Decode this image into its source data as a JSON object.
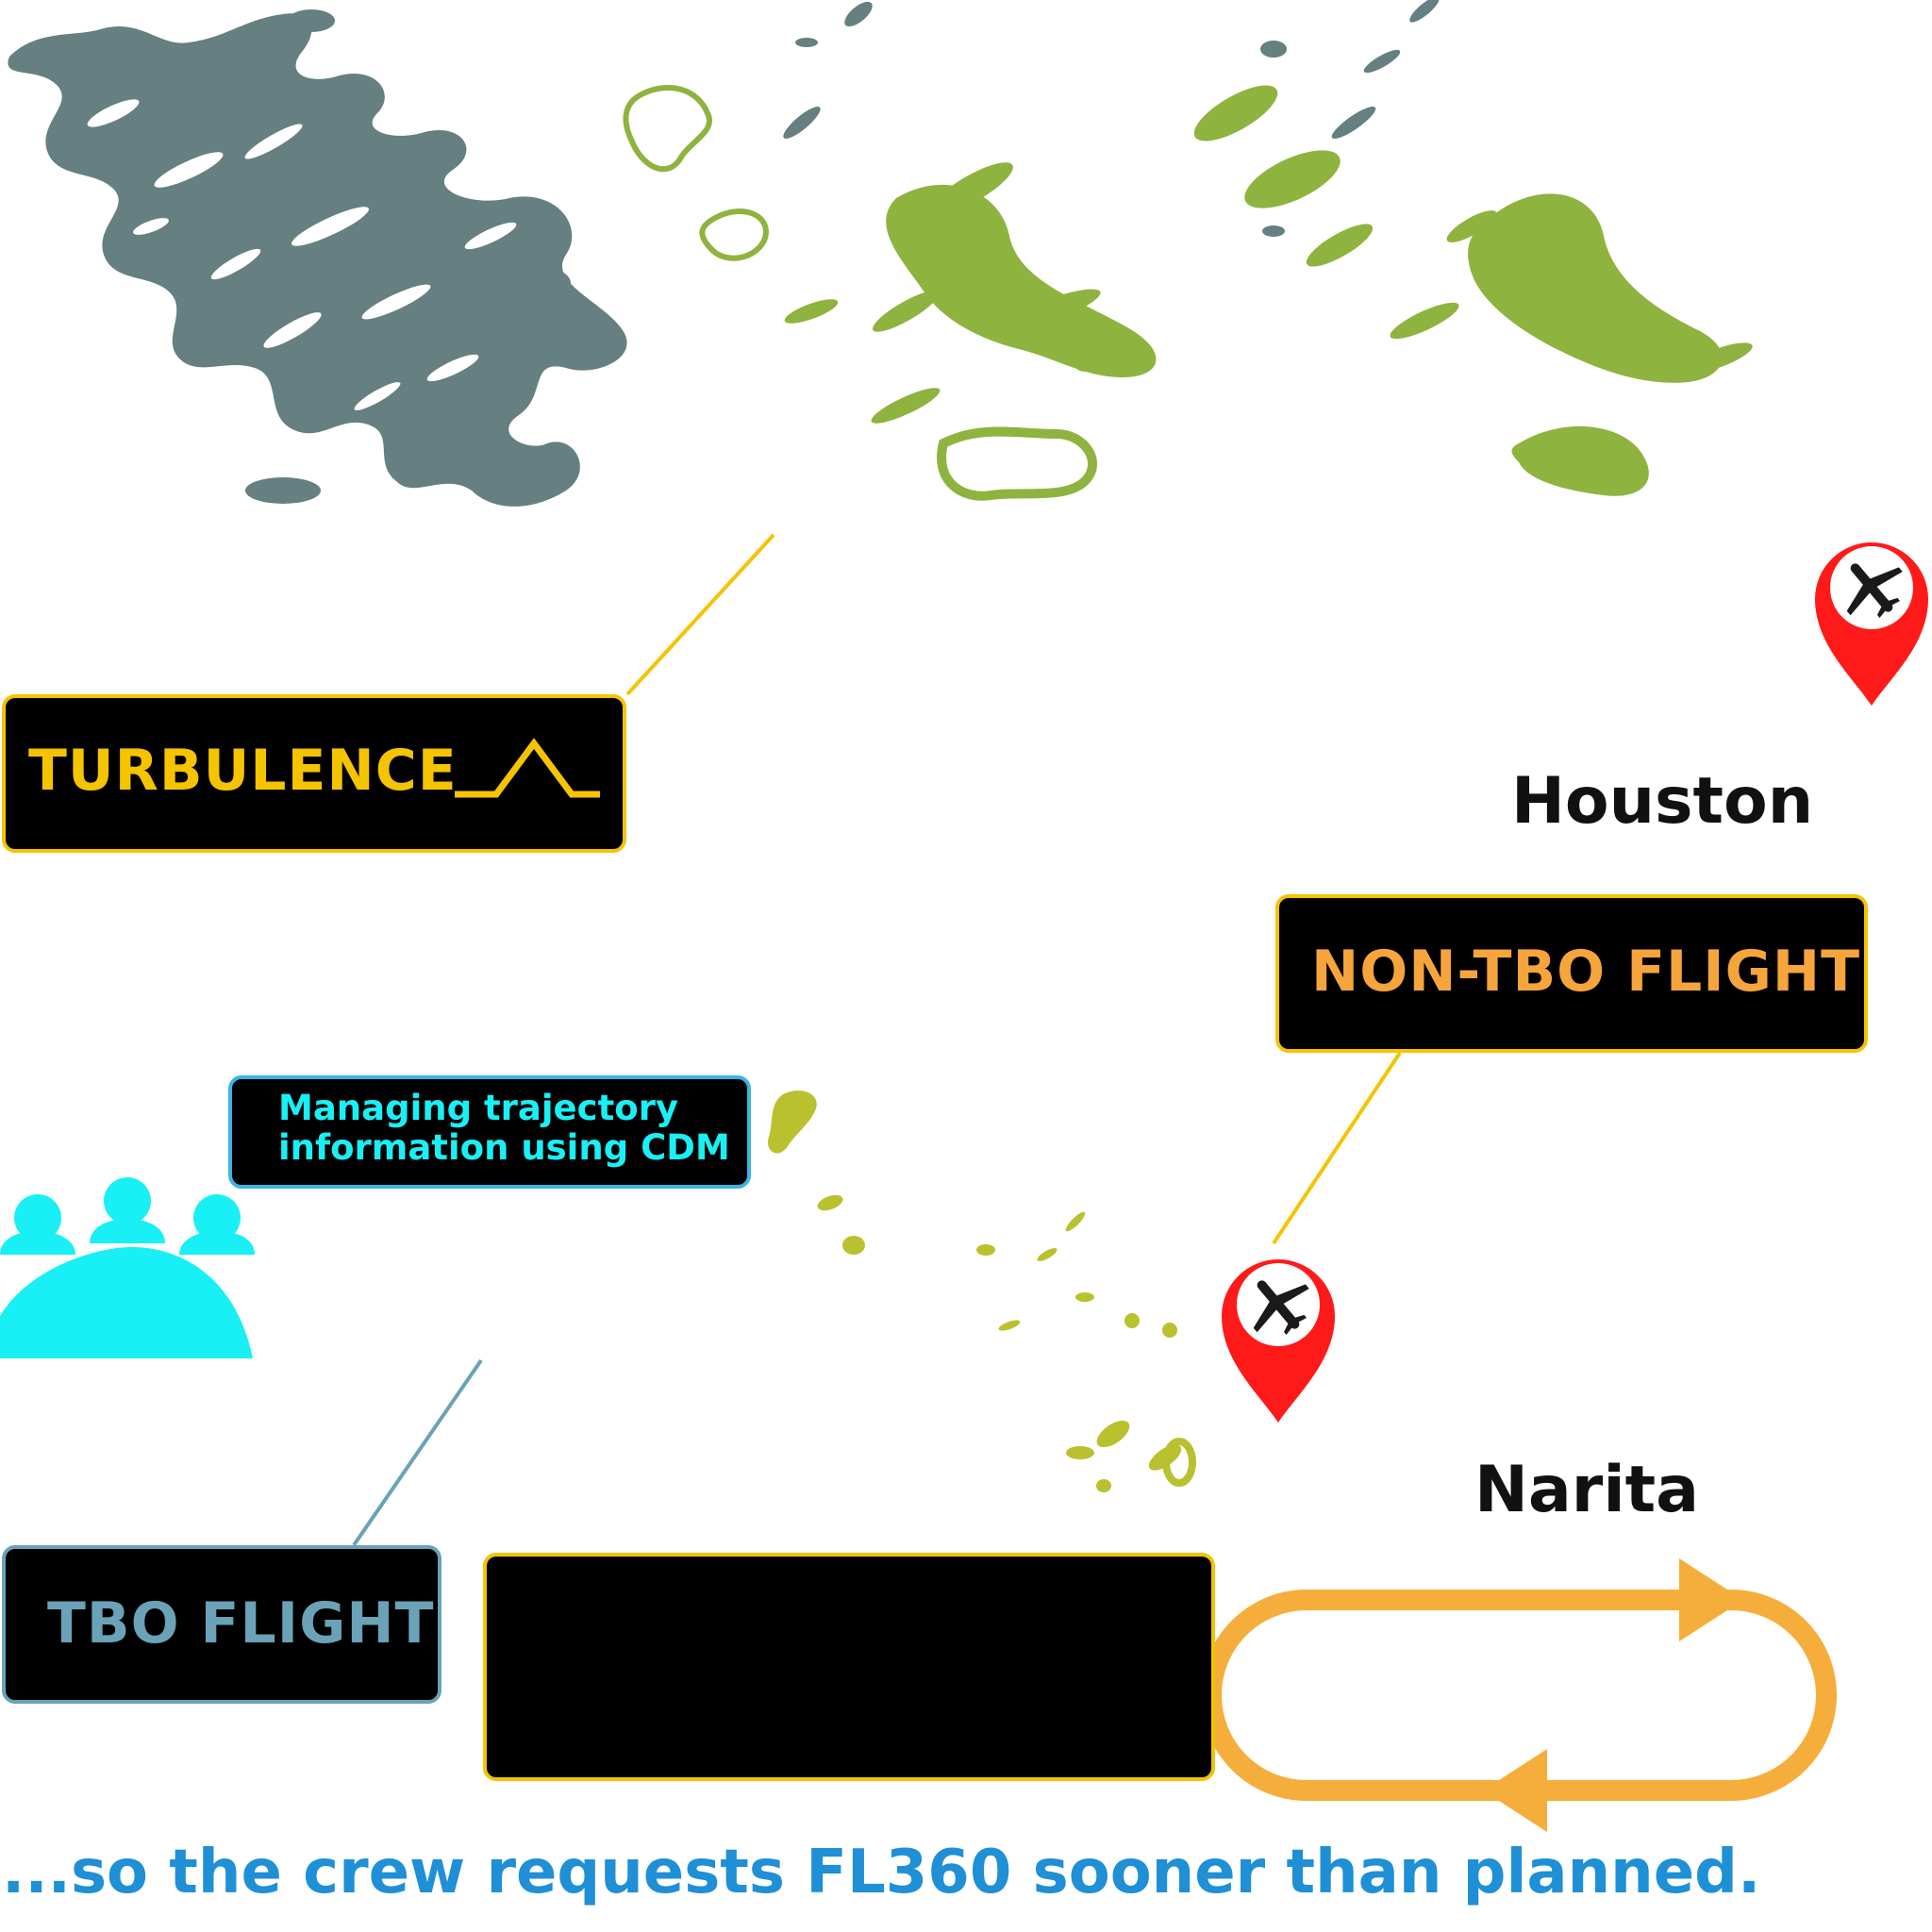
{
  "labels": {
    "turbulence": "TURBULENCE",
    "non_tbo_flight": "NON-TBO FLIGHT",
    "tbo_flight": "TBO FLIGHT",
    "cdm_line1": "Managing trajectory",
    "cdm_line2": "information using CDM",
    "houston": "Houston",
    "narita": "Narita",
    "caption": "...so the crew requests FL360 sooner than planned."
  },
  "colors": {
    "turbulence": "#f5c400",
    "non_tbo": "#f5a53b",
    "tbo": "#6aa2b8",
    "cdm": "#19f0f5",
    "caption": "#1f8fd6",
    "pin": "#ff1a1a",
    "weather_green": "#8fb33f",
    "weather_gray": "#667f80"
  },
  "icons": [
    "plane-pin-icon",
    "turbulence-icon",
    "people-group-icon",
    "holding-pattern-icon"
  ]
}
